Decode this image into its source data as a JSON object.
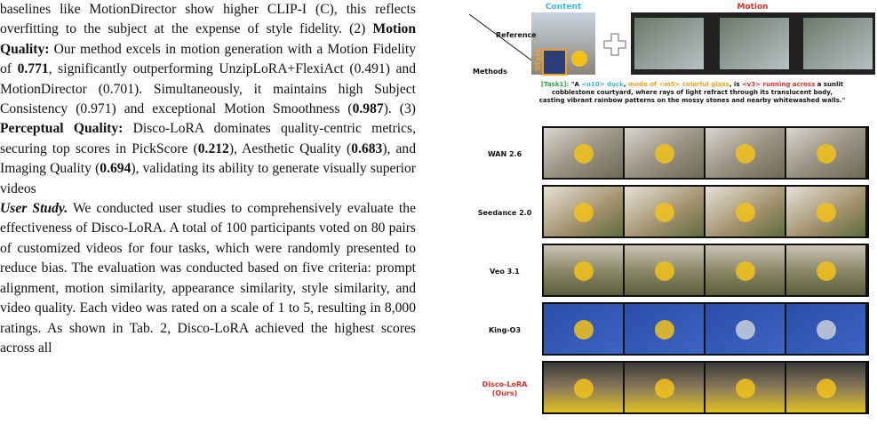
{
  "body": {
    "paragraphs": [
      [
        {
          "text": "baselines like MotionDirector show higher CLIP-I (C), this reflects overfitting to the subject at the expense of style fidelity. (2) "
        },
        {
          "text": "Motion Quality:",
          "style": "bold"
        },
        {
          "text": " Our method excels in motion generation with a Motion Fidelity of "
        },
        {
          "text": "0.771",
          "style": "bold"
        },
        {
          "text": ", significantly outperforming UnzipLoRA+FlexiAct (0.491) and MotionDirector (0.701). Simultaneously, it maintains high Subject Consistency (0.971) and exceptional Motion Smoothness ("
        },
        {
          "text": "0.987",
          "style": "bold"
        },
        {
          "text": "). (3) "
        },
        {
          "text": "Perceptual Quality:",
          "style": "bold"
        },
        {
          "text": " Disco-LoRA dominates quality-centric metrics, securing top scores in PickScore ("
        },
        {
          "text": "0.212",
          "style": "bold"
        },
        {
          "text": "), Aesthetic Quality ("
        },
        {
          "text": "0.683",
          "style": "bold"
        },
        {
          "text": "), and Imaging Quality ("
        },
        {
          "text": "0.694",
          "style": "bold"
        },
        {
          "text": "), validating its ability to generate visually superior videos"
        }
      ],
      [
        {
          "text": "User Study.",
          "style": "bold-italic"
        },
        {
          "text": " We conducted user studies to comprehensively evaluate the effectiveness of Disco-LoRA. A total of 100 participants voted on 80 pairs of customized videos for four tasks, which were randomly presented to reduce bias. The evaluation was conducted based on five criteria: prompt alignment, motion similarity, appearance similarity, style similarity, and video quality. Each video was rated on a scale of 1 to 5, resulting in 8,000 ratings. As shown in Tab. 2, Disco-LoRA achieved the highest scores across all"
        }
      ]
    ]
  },
  "figure": {
    "content_label": "Content",
    "motion_label": "Motion",
    "style_label": "Style",
    "reference_label": "Reference",
    "methods_label": "Methods",
    "prompt_lines": [
      [
        {
          "text": "[Task1]: ",
          "color": "#2aa84a"
        },
        {
          "text": "\"A ",
          "color": "#111111"
        },
        {
          "text": "<o10> duck",
          "color": "#3bb8e0"
        },
        {
          "text": ", ",
          "color": "#111111"
        },
        {
          "text": "mode of <m5> colorful glass",
          "color": "#f0a020"
        },
        {
          "text": ", is ",
          "color": "#111111"
        },
        {
          "text": "<v3> running across",
          "color": "#e0302a"
        },
        {
          "text": " a sunlit",
          "color": "#111111"
        }
      ],
      [
        {
          "text": "cobblestone courtyard, where rays of light refract through its translucent body,",
          "color": "#111111"
        }
      ],
      [
        {
          "text": "casting vibrant rainbow patterns on the mossy stones and nearby whitewashed walls.\"",
          "color": "#111111"
        }
      ]
    ],
    "rows": [
      {
        "label": [
          "WAN 2.6"
        ],
        "color": "#111111"
      },
      {
        "label": [
          "Seedance 2.0"
        ],
        "color": "#111111"
      },
      {
        "label": [
          "Veo 3.1"
        ],
        "color": "#111111"
      },
      {
        "label": [
          "King-O3"
        ],
        "color": "#111111"
      },
      {
        "label": [
          "Disco-LoRA",
          "(Ours)"
        ],
        "color": "#e0302a"
      }
    ]
  }
}
